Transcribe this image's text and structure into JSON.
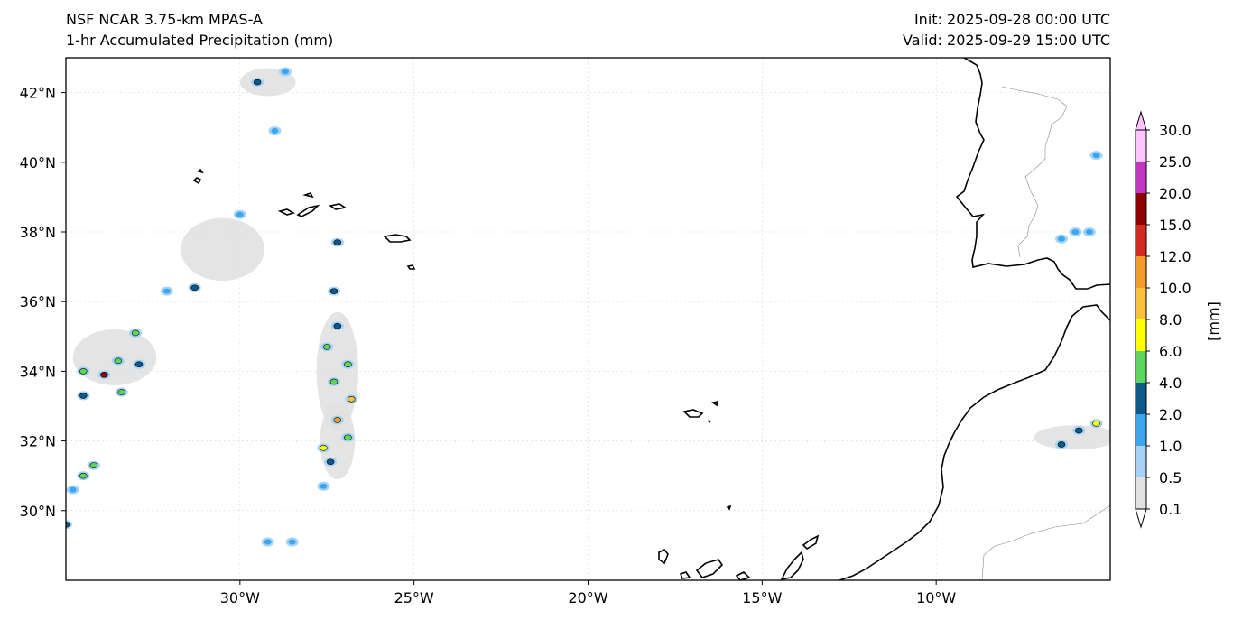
{
  "header": {
    "model": "NSF NCAR 3.75-km MPAS-A",
    "field": "1-hr Accumulated Precipitation (mm)",
    "init": "Init: 2025-09-28 00:00 UTC",
    "valid": "Valid: 2025-09-29 15:00 UTC"
  },
  "map": {
    "lon_range": [
      -35.0,
      -5.0
    ],
    "lat_range": [
      28.0,
      43.0
    ],
    "lat_ticks": [
      {
        "value": 42,
        "label": "42°N"
      },
      {
        "value": 40,
        "label": "40°N"
      },
      {
        "value": 38,
        "label": "38°N"
      },
      {
        "value": 36,
        "label": "36°N"
      },
      {
        "value": 34,
        "label": "34°N"
      },
      {
        "value": 32,
        "label": "32°N"
      },
      {
        "value": 30,
        "label": "30°N"
      }
    ],
    "lon_ticks": [
      {
        "value": -30,
        "label": "30°W"
      },
      {
        "value": -25,
        "label": "25°W"
      },
      {
        "value": -20,
        "label": "20°W"
      },
      {
        "value": -15,
        "label": "15°W"
      },
      {
        "value": -10,
        "label": "10°W"
      }
    ],
    "gridlines": true
  },
  "colorbar": {
    "unit_label": "[mm]",
    "levels": [
      "0.1",
      "0.5",
      "1.0",
      "2.0",
      "4.0",
      "6.0",
      "8.0",
      "10.0",
      "12.0",
      "15.0",
      "20.0",
      "25.0",
      "30.0"
    ],
    "colors": [
      "#e1e1e1",
      "#a6d2f6",
      "#3aa6f0",
      "#0a5a8a",
      "#5dd65d",
      "#ffff00",
      "#f7c23a",
      "#f39c2a",
      "#d42a1f",
      "#8f0000",
      "#c238c2",
      "#ffc3ff"
    ]
  },
  "precip_cells": [
    {
      "lon": -29.5,
      "lat": 42.3,
      "mm": 2.0
    },
    {
      "lon": -28.7,
      "lat": 42.6,
      "mm": 1.0
    },
    {
      "lon": -29.0,
      "lat": 40.9,
      "mm": 1.0
    },
    {
      "lon": -30.0,
      "lat": 38.5,
      "mm": 1.0
    },
    {
      "lon": -27.2,
      "lat": 37.7,
      "mm": 2.0
    },
    {
      "lon": -31.3,
      "lat": 36.4,
      "mm": 2.0
    },
    {
      "lon": -32.1,
      "lat": 36.3,
      "mm": 1.0
    },
    {
      "lon": -33.0,
      "lat": 35.1,
      "mm": 4.0
    },
    {
      "lon": -33.5,
      "lat": 34.3,
      "mm": 4.0
    },
    {
      "lon": -33.9,
      "lat": 33.9,
      "mm": 15.0
    },
    {
      "lon": -34.5,
      "lat": 34.0,
      "mm": 4.0
    },
    {
      "lon": -33.4,
      "lat": 33.4,
      "mm": 4.0
    },
    {
      "lon": -34.5,
      "lat": 33.3,
      "mm": 2.0
    },
    {
      "lon": -32.9,
      "lat": 34.2,
      "mm": 2.0
    },
    {
      "lon": -27.3,
      "lat": 36.3,
      "mm": 2.0
    },
    {
      "lon": -27.2,
      "lat": 35.3,
      "mm": 2.0
    },
    {
      "lon": -27.5,
      "lat": 34.7,
      "mm": 4.0
    },
    {
      "lon": -26.9,
      "lat": 34.2,
      "mm": 4.0
    },
    {
      "lon": -27.3,
      "lat": 33.7,
      "mm": 4.0
    },
    {
      "lon": -26.8,
      "lat": 33.2,
      "mm": 8.0
    },
    {
      "lon": -27.2,
      "lat": 32.6,
      "mm": 10.0
    },
    {
      "lon": -26.9,
      "lat": 32.1,
      "mm": 4.0
    },
    {
      "lon": -27.6,
      "lat": 31.8,
      "mm": 6.0
    },
    {
      "lon": -27.4,
      "lat": 31.4,
      "mm": 2.0
    },
    {
      "lon": -34.2,
      "lat": 31.3,
      "mm": 4.0
    },
    {
      "lon": -34.5,
      "lat": 31.0,
      "mm": 4.0
    },
    {
      "lon": -34.8,
      "lat": 30.6,
      "mm": 1.0
    },
    {
      "lon": -35.0,
      "lat": 29.6,
      "mm": 2.0
    },
    {
      "lon": -27.6,
      "lat": 30.7,
      "mm": 1.0
    },
    {
      "lon": -29.2,
      "lat": 29.1,
      "mm": 1.0
    },
    {
      "lon": -28.5,
      "lat": 29.1,
      "mm": 1.0
    },
    {
      "lon": -5.4,
      "lat": 32.5,
      "mm": 6.0
    },
    {
      "lon": -5.9,
      "lat": 32.3,
      "mm": 2.0
    },
    {
      "lon": -6.4,
      "lat": 31.9,
      "mm": 2.0
    },
    {
      "lon": -6.0,
      "lat": 38.0,
      "mm": 1.0
    },
    {
      "lon": -5.6,
      "lat": 38.0,
      "mm": 1.0
    },
    {
      "lon": -6.4,
      "lat": 37.8,
      "mm": 1.0
    },
    {
      "lon": -5.4,
      "lat": 40.2,
      "mm": 1.0
    }
  ],
  "light_precip_areas": [
    {
      "lon": -30.5,
      "lat": 37.5,
      "rx": 1.2,
      "ry": 0.9
    },
    {
      "lon": -33.6,
      "lat": 34.4,
      "rx": 1.2,
      "ry": 0.8
    },
    {
      "lon": -27.2,
      "lat": 34.0,
      "rx": 0.6,
      "ry": 1.7
    },
    {
      "lon": -27.2,
      "lat": 32.0,
      "rx": 0.5,
      "ry": 1.1
    },
    {
      "lon": -29.2,
      "lat": 42.3,
      "rx": 0.8,
      "ry": 0.4
    },
    {
      "lon": -6.0,
      "lat": 32.1,
      "rx": 1.2,
      "ry": 0.35
    }
  ]
}
